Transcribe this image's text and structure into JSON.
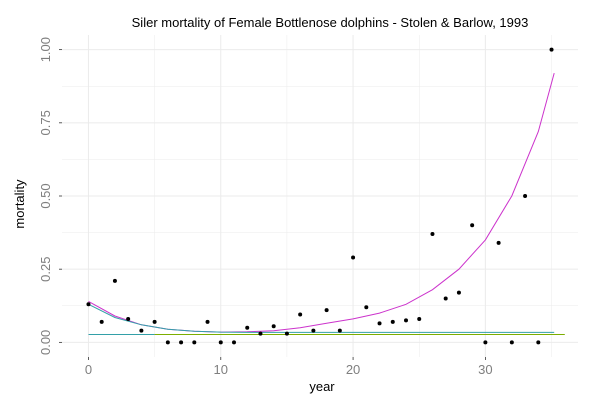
{
  "chart_data": {
    "type": "scatter",
    "title": "Siler mortality of Female Bottlenose dolphins - Stolen & Barlow, 1993",
    "xlabel": "year",
    "ylabel": "mortality",
    "xlim": [
      -2,
      37
    ],
    "ylim": [
      -0.05,
      1.05
    ],
    "xticks": [
      0,
      10,
      20,
      30
    ],
    "yticks": [
      0.0,
      0.25,
      0.5,
      0.75,
      1.0
    ],
    "xtick_labels": [
      "0",
      "10",
      "20",
      "30"
    ],
    "ytick_labels": [
      "0.00",
      "0.25",
      "0.50",
      "0.75",
      "1.00"
    ],
    "grid": true,
    "points": [
      {
        "x": 0,
        "y": 0.13
      },
      {
        "x": 1,
        "y": 0.07
      },
      {
        "x": 2,
        "y": 0.21
      },
      {
        "x": 3,
        "y": 0.08
      },
      {
        "x": 4,
        "y": 0.04
      },
      {
        "x": 5,
        "y": 0.07
      },
      {
        "x": 6,
        "y": 0.0
      },
      {
        "x": 7,
        "y": 0.0
      },
      {
        "x": 8,
        "y": 0.0
      },
      {
        "x": 9,
        "y": 0.07
      },
      {
        "x": 10,
        "y": 0.0
      },
      {
        "x": 11,
        "y": 0.0
      },
      {
        "x": 12,
        "y": 0.05
      },
      {
        "x": 13,
        "y": 0.03
      },
      {
        "x": 14,
        "y": 0.055
      },
      {
        "x": 15,
        "y": 0.03
      },
      {
        "x": 16,
        "y": 0.095
      },
      {
        "x": 17,
        "y": 0.04
      },
      {
        "x": 18,
        "y": 0.11
      },
      {
        "x": 19,
        "y": 0.04
      },
      {
        "x": 20,
        "y": 0.29
      },
      {
        "x": 21,
        "y": 0.12
      },
      {
        "x": 22,
        "y": 0.065
      },
      {
        "x": 23,
        "y": 0.07
      },
      {
        "x": 24,
        "y": 0.075
      },
      {
        "x": 25,
        "y": 0.08
      },
      {
        "x": 26,
        "y": 0.37
      },
      {
        "x": 27,
        "y": 0.15
      },
      {
        "x": 28,
        "y": 0.17
      },
      {
        "x": 29,
        "y": 0.4
      },
      {
        "x": 30,
        "y": 0.0
      },
      {
        "x": 31,
        "y": 0.34
      },
      {
        "x": 32,
        "y": 0.0
      },
      {
        "x": 33,
        "y": 0.5
      },
      {
        "x": 34,
        "y": 0.0
      },
      {
        "x": 35,
        "y": 1.0
      }
    ],
    "series": [
      {
        "type": "curve",
        "color": "#cc33cc",
        "x": [
          0,
          2,
          4,
          6,
          8,
          10,
          12,
          14,
          16,
          18,
          20,
          22,
          24,
          26,
          28,
          30,
          32,
          34,
          35.2
        ],
        "y": [
          0.14,
          0.09,
          0.06,
          0.045,
          0.038,
          0.035,
          0.036,
          0.04,
          0.05,
          0.065,
          0.08,
          0.1,
          0.13,
          0.18,
          0.25,
          0.35,
          0.5,
          0.72,
          0.92
        ]
      },
      {
        "type": "curve",
        "color": "#33a0a8",
        "x": [
          0,
          2,
          4,
          6,
          8,
          10,
          12,
          14,
          16,
          18,
          20,
          22,
          24,
          26,
          28,
          30,
          32,
          34,
          35.2
        ],
        "y": [
          0.13,
          0.085,
          0.06,
          0.045,
          0.038,
          0.035,
          0.034,
          0.034,
          0.034,
          0.034,
          0.034,
          0.034,
          0.034,
          0.034,
          0.034,
          0.034,
          0.034,
          0.034,
          0.034
        ]
      },
      {
        "type": "line",
        "color": "#33a0a8",
        "x": [
          0,
          5
        ],
        "y": [
          0.027,
          0.027
        ]
      },
      {
        "type": "line",
        "color": "#7cae00",
        "x": [
          5,
          36
        ],
        "y": [
          0.027,
          0.027
        ]
      }
    ],
    "colors": {
      "points": "#000000",
      "grid": "#ebebeb",
      "tick": "#7f7f7f"
    }
  }
}
